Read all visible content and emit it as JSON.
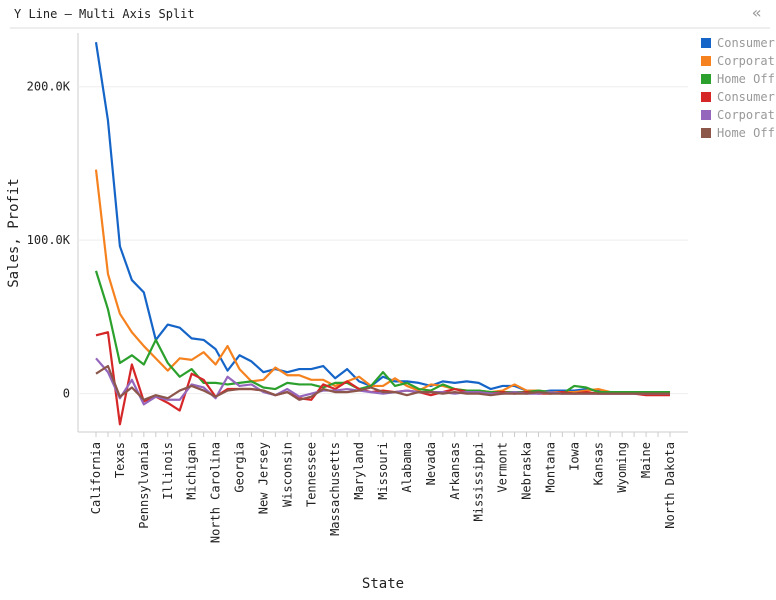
{
  "chart_data": {
    "type": "line",
    "title": "Y Line – Multi Axis Split",
    "xlabel": "State",
    "ylabel": "Sales, Profit",
    "categories": [
      "California",
      null,
      "Texas",
      null,
      "Pennsylvania",
      null,
      "Illinois",
      null,
      "Michigan",
      null,
      "North Carolina",
      null,
      "Georgia",
      null,
      "New Jersey",
      null,
      "Wisconsin",
      null,
      "Tennessee",
      null,
      "Massachusetts",
      null,
      "Maryland",
      null,
      "Missouri",
      null,
      "Alabama",
      null,
      "Nevada",
      null,
      "Arkansas",
      null,
      "Mississippi",
      null,
      "Vermont",
      null,
      "Nebraska",
      null,
      "Montana",
      null,
      "Iowa",
      null,
      "Kansas",
      null,
      "Wyoming",
      null,
      "Maine",
      null,
      "North Dakota"
    ],
    "ylim": [
      -25000,
      235000
    ],
    "yticks": [
      0,
      {
        "value": 100000,
        "label": "100.0K"
      },
      {
        "value": 200000,
        "label": "200.0K"
      }
    ],
    "grid": true,
    "series": [
      {
        "name": "Consumer",
        "color": "#1565c8",
        "values": [
          229000,
          178000,
          96000,
          74000,
          66000,
          35000,
          45000,
          43000,
          36000,
          35000,
          29000,
          15000,
          25000,
          21000,
          14000,
          16000,
          14000,
          16000,
          16000,
          18000,
          10000,
          16000,
          8000,
          5000,
          11000,
          8000,
          8000,
          7000,
          5000,
          8000,
          7000,
          8000,
          7000,
          3000,
          5000,
          5000,
          2000,
          1000,
          2000,
          2000,
          2000,
          3000,
          2000,
          1000,
          1000,
          1000,
          1000,
          1000,
          1000
        ]
      },
      {
        "name": "Corporat",
        "color": "#f5821f",
        "values": [
          146000,
          78000,
          52000,
          40000,
          31000,
          23000,
          15000,
          23000,
          22000,
          27000,
          19000,
          31000,
          16000,
          8000,
          9000,
          17000,
          12000,
          12000,
          9000,
          9000,
          5000,
          8000,
          11000,
          5000,
          5000,
          10000,
          5000,
          2000,
          6000,
          5000,
          3000,
          2000,
          2000,
          1000,
          2000,
          6000,
          2000,
          2000,
          1000,
          1000,
          1000,
          2000,
          3000,
          1000,
          1000,
          1000,
          1000,
          0,
          1000
        ]
      },
      {
        "name": "Home Off",
        "color": "#2ca02c",
        "values": [
          80000,
          55000,
          20000,
          25000,
          19000,
          35000,
          20000,
          11000,
          16000,
          7000,
          7000,
          6000,
          7000,
          8000,
          4000,
          3000,
          7000,
          6000,
          6000,
          4000,
          7000,
          7000,
          3000,
          5000,
          14000,
          5000,
          7000,
          3000,
          2000,
          6000,
          3000,
          2000,
          2000,
          1000,
          1000,
          1000,
          1000,
          2000,
          1000,
          0,
          5000,
          4000,
          1000,
          1000,
          1000,
          1000,
          1000,
          1000,
          1000
        ]
      },
      {
        "name": "Consumer",
        "color": "#d62728",
        "values": [
          38000,
          40000,
          -20000,
          19000,
          -5000,
          -2000,
          -6000,
          -11000,
          13000,
          9000,
          -2000,
          3000,
          3000,
          3000,
          2000,
          -1000,
          1000,
          -3000,
          -4000,
          6000,
          3000,
          8000,
          3000,
          1000,
          2000,
          1000,
          2000,
          1000,
          -1000,
          1000,
          3000,
          1000,
          1000,
          0,
          1000,
          0,
          1000,
          0,
          0,
          1000,
          0,
          1000,
          0,
          0,
          0,
          0,
          -1000,
          -1000,
          -1000
        ]
      },
      {
        "name": "Corporat",
        "color": "#9467bd",
        "values": [
          23000,
          14000,
          -3000,
          9000,
          -7000,
          -2000,
          -4000,
          -4000,
          6000,
          4000,
          -3000,
          11000,
          5000,
          6000,
          1000,
          -1000,
          3000,
          -2000,
          0,
          2000,
          2000,
          3000,
          2000,
          1000,
          0,
          1000,
          2000,
          1000,
          1000,
          1000,
          0,
          1000,
          1000,
          0,
          0,
          1000,
          0,
          0,
          1000,
          0,
          0,
          0,
          0,
          0,
          0,
          0,
          0,
          0,
          0
        ]
      },
      {
        "name": "Home Off",
        "color": "#8c564b",
        "values": [
          13000,
          18000,
          -2000,
          4000,
          -4000,
          -1000,
          -3000,
          2000,
          5000,
          2000,
          -2000,
          2000,
          3000,
          3000,
          2000,
          -1000,
          1000,
          -4000,
          -2000,
          3000,
          1000,
          1000,
          2000,
          4000,
          1000,
          1000,
          -1000,
          1000,
          1000,
          0,
          1000,
          0,
          0,
          -1000,
          0,
          0,
          0,
          1000,
          0,
          0,
          0,
          0,
          0,
          0,
          0,
          0,
          0,
          0,
          0
        ]
      }
    ]
  }
}
